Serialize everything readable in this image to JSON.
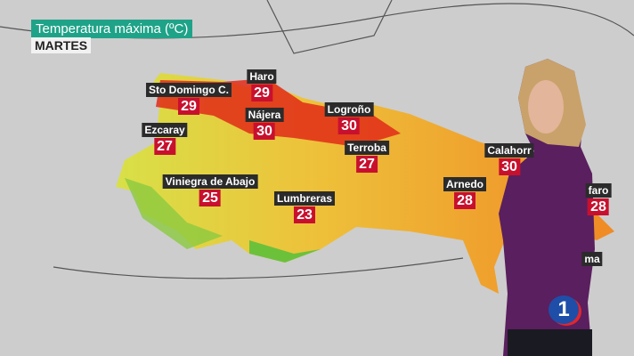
{
  "header": {
    "title": "Temperatura máxima (ºC)",
    "day": "MARTES"
  },
  "cities": [
    {
      "name": "Haro",
      "temp": "29"
    },
    {
      "name": "Sto Domingo C.",
      "temp": "29"
    },
    {
      "name": "Nájera",
      "temp": "30"
    },
    {
      "name": "Logroño",
      "temp": "30"
    },
    {
      "name": "Ezcaray",
      "temp": "27"
    },
    {
      "name": "Terroba",
      "temp": "27"
    },
    {
      "name": "Calahorr",
      "temp": "30"
    },
    {
      "name": "Viniegra de Abajo",
      "temp": "25"
    },
    {
      "name": "Arnedo",
      "temp": "28"
    },
    {
      "name": "faro",
      "temp": "28"
    },
    {
      "name": "Lumbreras",
      "temp": "23"
    },
    {
      "name": "ma",
      "temp": ""
    }
  ],
  "colors": {
    "title_bg": "#1fa388",
    "temp_bg": "#c8102e",
    "presenter_top": "#5a1f5e"
  },
  "logo": "1"
}
